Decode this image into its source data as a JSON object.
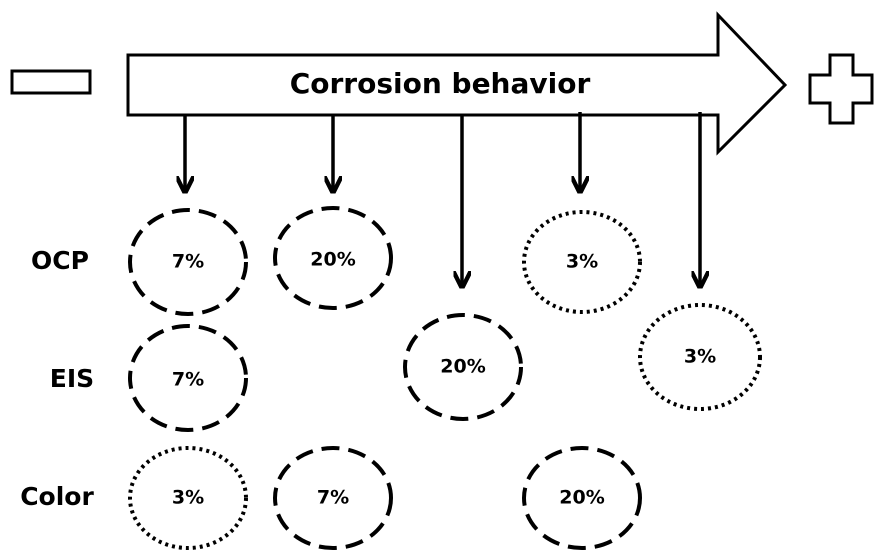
{
  "arrow": {
    "label": "Corrosion behavior"
  },
  "rows": [
    {
      "label": "OCP"
    },
    {
      "label": "EIS"
    },
    {
      "label": "Color"
    }
  ],
  "circles": [
    {
      "label": "7%"
    },
    {
      "label": "20%"
    },
    {
      "label": "3%"
    },
    {
      "label": "7%"
    },
    {
      "label": "20%"
    },
    {
      "label": "3%"
    },
    {
      "label": "3%"
    },
    {
      "label": "7%"
    },
    {
      "label": "20%"
    }
  ]
}
